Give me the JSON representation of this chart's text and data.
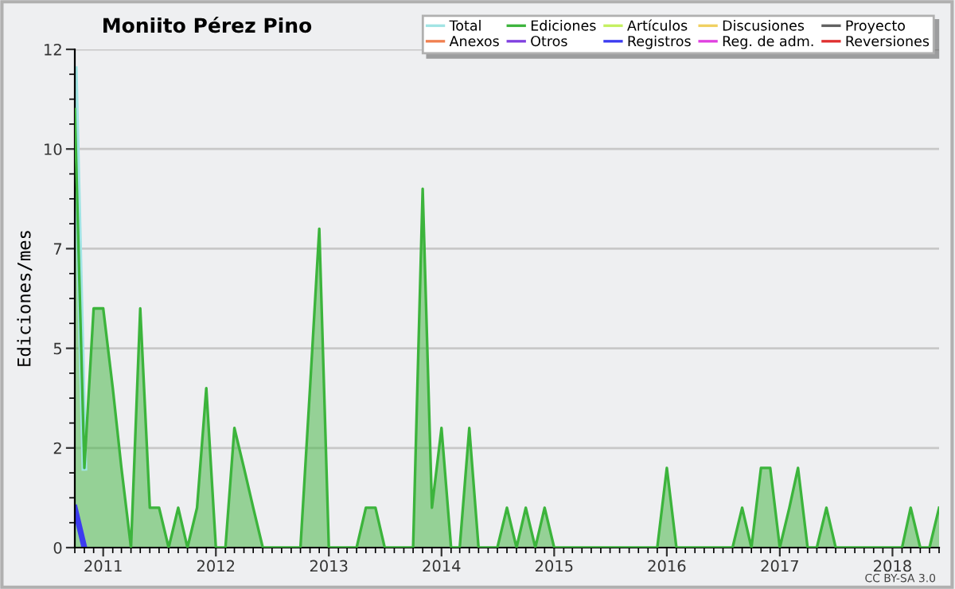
{
  "chart_data": {
    "type": "area",
    "title": "Moniito Pérez Pino",
    "ylabel": "Ediciones/mes",
    "annotations": [
      "CC BY-SA 3.0"
    ],
    "x": [
      "2010-10",
      "2010-11",
      "2010-12",
      "2011-01",
      "2011-02",
      "2011-03",
      "2011-04",
      "2011-05",
      "2011-06",
      "2011-07",
      "2011-08",
      "2011-09",
      "2011-10",
      "2011-11",
      "2011-12",
      "2012-01",
      "2012-02",
      "2012-03",
      "2012-04",
      "2012-05",
      "2012-06",
      "2012-07",
      "2012-08",
      "2012-09",
      "2012-10",
      "2012-11",
      "2012-12",
      "2013-01",
      "2013-02",
      "2013-03",
      "2013-04",
      "2013-05",
      "2013-06",
      "2013-07",
      "2013-08",
      "2013-09",
      "2013-10",
      "2013-11",
      "2013-12",
      "2014-01",
      "2014-02",
      "2014-03",
      "2014-04",
      "2014-05",
      "2014-06",
      "2014-07",
      "2014-08",
      "2014-09",
      "2014-10",
      "2014-11",
      "2014-12",
      "2015-01",
      "2015-02",
      "2015-03",
      "2015-04",
      "2015-05",
      "2015-06",
      "2015-07",
      "2015-08",
      "2015-09",
      "2015-10",
      "2015-11",
      "2015-12",
      "2016-01",
      "2016-02",
      "2016-03",
      "2016-04",
      "2016-05",
      "2016-06",
      "2016-07",
      "2016-08",
      "2016-09",
      "2016-10",
      "2016-11",
      "2016-12",
      "2017-01",
      "2017-02",
      "2017-03",
      "2017-04",
      "2017-05",
      "2017-06",
      "2017-07",
      "2017-08",
      "2017-09",
      "2017-10",
      "2017-11",
      "2017-12",
      "2018-01",
      "2018-02",
      "2018-03",
      "2018-04",
      "2018-05",
      "2018-06"
    ],
    "series": [
      {
        "name": "Total",
        "color": "#a0e4e4",
        "type": "line",
        "values": [
          12,
          2,
          null,
          null,
          null,
          null,
          null,
          null,
          null,
          null,
          null,
          null,
          null,
          null,
          null,
          null,
          null,
          null,
          null,
          null,
          null,
          null,
          null,
          null,
          null,
          null,
          null,
          null,
          null,
          null,
          null,
          null,
          null,
          null,
          null,
          null,
          null,
          null,
          null,
          null,
          null,
          null,
          null,
          null,
          null,
          null,
          null,
          null,
          null,
          null,
          null,
          null,
          null,
          null,
          null,
          null,
          null,
          null,
          null,
          null,
          null,
          null,
          null,
          null,
          null,
          null,
          null,
          null,
          null,
          null,
          null,
          null,
          null,
          null,
          null,
          null,
          null,
          null,
          null,
          null,
          null,
          null,
          null,
          null,
          null,
          null,
          null,
          null,
          null,
          null,
          null,
          null,
          null
        ]
      },
      {
        "name": "Anexos",
        "color": "#f08050",
        "type": "line",
        "values": [
          null,
          null,
          null,
          null,
          null,
          null,
          null,
          null,
          null,
          null,
          null,
          null,
          null,
          null,
          null,
          null,
          null,
          null,
          null,
          null,
          null,
          null,
          null,
          null,
          null,
          null,
          null,
          null,
          null,
          null,
          null,
          null,
          null,
          null,
          null,
          null,
          null,
          null,
          null,
          null,
          null,
          null,
          null,
          null,
          null,
          null,
          null,
          null,
          null,
          null,
          null,
          null,
          null,
          null,
          null,
          null,
          null,
          null,
          null,
          null,
          null,
          null,
          null,
          null,
          null,
          null,
          null,
          null,
          null,
          null,
          null,
          null,
          null,
          null,
          null,
          null,
          null,
          null,
          null,
          null,
          null,
          null,
          null,
          null,
          null,
          null,
          null,
          null,
          null,
          null,
          null,
          null,
          null
        ]
      },
      {
        "name": "Ediciones",
        "color": "#3cb43c",
        "values": [
          11,
          2,
          6,
          6,
          4,
          2,
          0,
          6,
          1,
          1,
          0,
          1,
          0,
          1,
          4,
          0,
          0,
          3,
          2,
          1,
          0,
          0,
          0,
          0,
          0,
          4,
          8,
          0,
          0,
          0,
          0,
          1,
          1,
          0,
          0,
          0,
          0,
          9,
          1,
          3,
          0,
          0,
          3,
          0,
          0,
          0,
          1,
          0,
          1,
          0,
          1,
          0,
          0,
          0,
          0,
          0,
          0,
          0,
          0,
          0,
          0,
          0,
          0,
          2,
          0,
          0,
          0,
          0,
          0,
          0,
          0,
          1,
          0,
          2,
          2,
          0,
          1,
          2,
          0,
          0,
          1,
          0,
          0,
          0,
          0,
          0,
          0,
          0,
          0,
          1,
          0,
          0,
          1
        ]
      },
      {
        "name": "Otros",
        "color": "#8040e0",
        "type": "line",
        "values": [
          null,
          null,
          null,
          null,
          null,
          null,
          null,
          null,
          null,
          null,
          null,
          null,
          null,
          null,
          null,
          null,
          null,
          null,
          null,
          null,
          null,
          null,
          null,
          null,
          null,
          null,
          null,
          null,
          null,
          null,
          null,
          null,
          null,
          null,
          null,
          null,
          null,
          null,
          null,
          null,
          null,
          null,
          null,
          null,
          null,
          null,
          null,
          null,
          null,
          null,
          null,
          null,
          null,
          null,
          null,
          null,
          null,
          null,
          null,
          null,
          null,
          null,
          null,
          null,
          null,
          null,
          null,
          null,
          null,
          null,
          null,
          null,
          null,
          null,
          null,
          null,
          null,
          null,
          null,
          null,
          null,
          null,
          null,
          null,
          null,
          null,
          null,
          null,
          null,
          null,
          null,
          null,
          null
        ]
      },
      {
        "name": "Artículos",
        "color": "#c4f060",
        "type": "line",
        "values": [
          null,
          null,
          null,
          null,
          null,
          null,
          null,
          null,
          null,
          null,
          null,
          null,
          null,
          null,
          null,
          null,
          null,
          null,
          null,
          null,
          null,
          null,
          null,
          null,
          null,
          null,
          null,
          null,
          null,
          null,
          null,
          null,
          null,
          null,
          null,
          null,
          null,
          null,
          null,
          null,
          null,
          null,
          null,
          null,
          null,
          null,
          null,
          null,
          null,
          null,
          null,
          null,
          null,
          null,
          null,
          null,
          null,
          null,
          null,
          null,
          null,
          null,
          null,
          null,
          null,
          null,
          null,
          null,
          null,
          null,
          null,
          null,
          null,
          null,
          null,
          null,
          null,
          null,
          null,
          null,
          null,
          null,
          null,
          null,
          null,
          null,
          null,
          null,
          null,
          null,
          null,
          null,
          null
        ]
      },
      {
        "name": "Registros",
        "color": "#3c3cf0",
        "type": "line",
        "values": [
          1,
          0,
          null,
          null,
          null,
          null,
          null,
          null,
          null,
          null,
          null,
          null,
          null,
          null,
          null,
          null,
          null,
          null,
          null,
          null,
          null,
          null,
          null,
          null,
          null,
          null,
          null,
          null,
          null,
          null,
          null,
          null,
          null,
          null,
          null,
          null,
          null,
          null,
          null,
          null,
          null,
          null,
          null,
          null,
          null,
          null,
          null,
          null,
          null,
          null,
          null,
          null,
          null,
          null,
          null,
          null,
          null,
          null,
          null,
          null,
          null,
          null,
          null,
          null,
          null,
          null,
          null,
          null,
          null,
          null,
          null,
          null,
          null,
          null,
          null,
          null,
          null,
          null,
          null,
          null,
          null,
          null,
          null,
          null,
          null,
          null,
          null,
          null,
          null,
          null,
          null,
          null,
          null
        ]
      },
      {
        "name": "Discusiones",
        "color": "#f0d060",
        "type": "line",
        "values": [
          null,
          null,
          null,
          null,
          null,
          null,
          null,
          null,
          null,
          null,
          null,
          null,
          null,
          null,
          null,
          null,
          null,
          null,
          null,
          null,
          null,
          null,
          null,
          null,
          null,
          null,
          null,
          null,
          null,
          null,
          null,
          null,
          null,
          null,
          null,
          null,
          null,
          null,
          null,
          null,
          null,
          null,
          null,
          null,
          null,
          null,
          null,
          null,
          null,
          null,
          null,
          null,
          null,
          null,
          null,
          null,
          null,
          null,
          null,
          null,
          null,
          null,
          null,
          null,
          null,
          null,
          null,
          null,
          null,
          null,
          null,
          null,
          null,
          null,
          null,
          null,
          null,
          null,
          null,
          null,
          null,
          null,
          null,
          null,
          null,
          null,
          null,
          null,
          null,
          null,
          null,
          null,
          null
        ]
      },
      {
        "name": "Reg. de adm.",
        "color": "#e040e0",
        "type": "line",
        "values": [
          null,
          null,
          null,
          null,
          null,
          null,
          null,
          null,
          null,
          null,
          null,
          null,
          null,
          null,
          null,
          null,
          null,
          null,
          null,
          null,
          null,
          null,
          null,
          null,
          null,
          null,
          null,
          null,
          null,
          null,
          null,
          null,
          null,
          null,
          null,
          null,
          null,
          null,
          null,
          null,
          null,
          null,
          null,
          null,
          null,
          null,
          null,
          null,
          null,
          null,
          null,
          null,
          null,
          null,
          null,
          null,
          null,
          null,
          null,
          null,
          null,
          null,
          null,
          null,
          null,
          null,
          null,
          null,
          null,
          null,
          null,
          null,
          null,
          null,
          null,
          null,
          null,
          null,
          null,
          null,
          null,
          null,
          null,
          null,
          null,
          null,
          null,
          null,
          null,
          null,
          null,
          null,
          null
        ]
      },
      {
        "name": "Proyecto",
        "color": "#606060",
        "type": "line",
        "values": [
          null,
          null,
          null,
          null,
          null,
          null,
          null,
          null,
          null,
          null,
          null,
          null,
          null,
          null,
          null,
          null,
          null,
          null,
          null,
          null,
          null,
          null,
          null,
          null,
          null,
          null,
          null,
          null,
          null,
          null,
          null,
          null,
          null,
          null,
          null,
          null,
          null,
          null,
          null,
          null,
          null,
          null,
          null,
          null,
          null,
          null,
          null,
          null,
          null,
          null,
          null,
          null,
          null,
          null,
          null,
          null,
          null,
          null,
          null,
          null,
          null,
          null,
          null,
          null,
          null,
          null,
          null,
          null,
          null,
          null,
          null,
          null,
          null,
          null,
          null,
          null,
          null,
          null,
          null,
          null,
          null,
          null,
          null,
          null,
          null,
          null,
          null,
          null,
          null,
          null,
          null,
          null,
          null
        ]
      },
      {
        "name": "Reversiones",
        "color": "#e03030",
        "type": "line",
        "values": [
          null,
          null,
          null,
          null,
          null,
          null,
          null,
          null,
          null,
          null,
          null,
          null,
          null,
          null,
          null,
          null,
          null,
          null,
          null,
          null,
          null,
          null,
          null,
          null,
          null,
          null,
          null,
          null,
          null,
          null,
          null,
          null,
          null,
          null,
          null,
          null,
          null,
          null,
          null,
          null,
          null,
          null,
          null,
          null,
          null,
          null,
          null,
          null,
          null,
          null,
          null,
          null,
          null,
          null,
          null,
          null,
          null,
          null,
          null,
          null,
          null,
          null,
          null,
          null,
          null,
          null,
          null,
          null,
          null,
          null,
          null,
          null,
          null,
          null,
          null,
          null,
          null,
          null,
          null,
          null,
          null,
          null,
          null,
          null,
          null,
          null,
          null,
          null,
          null,
          null,
          null,
          null,
          null
        ]
      }
    ],
    "xlim": [
      "2010-10",
      "2018-06"
    ],
    "xticks": [
      {
        "value": "2011-01",
        "label": "2011"
      },
      {
        "value": "2012-01",
        "label": "2012"
      },
      {
        "value": "2013-01",
        "label": "2013"
      },
      {
        "value": "2014-01",
        "label": "2014"
      },
      {
        "value": "2015-01",
        "label": "2015"
      },
      {
        "value": "2016-01",
        "label": "2016"
      },
      {
        "value": "2017-01",
        "label": "2017"
      },
      {
        "value": "2018-01",
        "label": "2018"
      }
    ],
    "ylim": [
      0,
      12.5
    ],
    "yticks": [
      0,
      {
        "value": 2.5,
        "label": "2"
      },
      5,
      {
        "value": 7.5,
        "label": "7"
      },
      10,
      {
        "value": 12.5,
        "label": "12"
      },
      {
        "value": 0.625,
        "label": null
      },
      {
        "value": 1.25,
        "label": null
      },
      {
        "value": 1.875,
        "label": null
      },
      {
        "value": 3.125,
        "label": null
      },
      {
        "value": 3.75,
        "label": null
      },
      {
        "value": 4.375,
        "label": null
      },
      {
        "value": 5.625,
        "label": null
      },
      {
        "value": 6.25,
        "label": null
      },
      {
        "value": 6.875,
        "label": null
      },
      {
        "value": 8.125,
        "label": null
      },
      {
        "value": 8.75,
        "label": null
      },
      {
        "value": 9.375,
        "label": null
      },
      {
        "value": 10.625,
        "label": null
      },
      {
        "value": 11.25,
        "label": null
      },
      {
        "value": 11.875,
        "label": null
      }
    ],
    "grid": "y",
    "legend": "top right"
  }
}
